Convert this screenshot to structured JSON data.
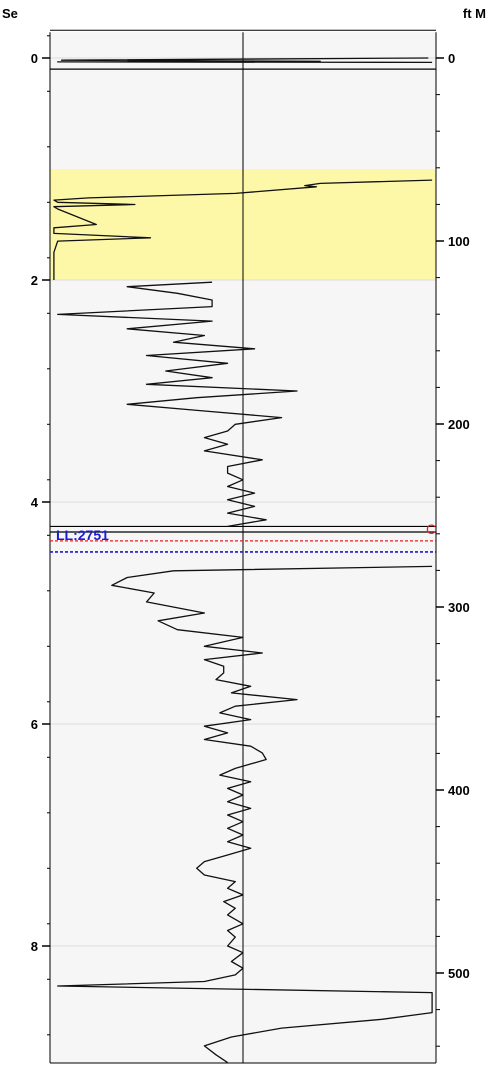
{
  "chart_data": {
    "type": "line",
    "left_axis": {
      "unit": "Se",
      "ticks": [
        0,
        2,
        4,
        6,
        8
      ],
      "tick_labels": [
        "0",
        "2",
        "4",
        "6",
        "8"
      ],
      "range": [
        -0.25,
        9.1
      ]
    },
    "right_axis": {
      "unit": "ft M",
      "ticks": [
        0,
        100,
        200,
        300,
        400,
        500
      ],
      "tick_labels": [
        "0",
        "100",
        "200",
        "300",
        "400",
        "500"
      ],
      "range": [
        -14,
        560
      ]
    },
    "grid": true,
    "highlight_band": {
      "from": 1.0,
      "to": 2.0,
      "color": "#fdf8a8"
    },
    "markers": {
      "ll_label": "LL:2751",
      "ll_color": "#1a1ad8",
      "c_label": "C",
      "c_color": "#e02020"
    },
    "series": [
      {
        "points": [
          [
            0.0,
            0.98
          ],
          [
            0.02,
            0.03
          ],
          [
            0.03,
            0.7
          ],
          [
            0.035,
            0.02
          ],
          [
            0.04,
            0.99
          ]
        ]
      },
      {
        "points": [
          [
            1.1,
            0.99
          ],
          [
            1.13,
            0.7
          ],
          [
            1.15,
            0.66
          ],
          [
            1.16,
            0.69
          ],
          [
            1.22,
            0.48
          ],
          [
            1.26,
            0.1
          ],
          [
            1.28,
            0.01
          ],
          [
            1.3,
            0.02
          ],
          [
            1.32,
            0.22
          ],
          [
            1.34,
            0.01
          ],
          [
            1.36,
            0.02
          ],
          [
            1.5,
            0.12
          ],
          [
            1.53,
            0.01
          ],
          [
            1.58,
            0.01
          ],
          [
            1.62,
            0.26
          ],
          [
            1.65,
            0.02
          ],
          [
            1.75,
            0.01
          ],
          [
            2.0,
            0.01
          ]
        ]
      },
      {
        "points": [
          [
            2.02,
            0.42
          ],
          [
            2.06,
            0.2
          ],
          [
            2.12,
            0.33
          ],
          [
            2.18,
            0.42
          ],
          [
            2.24,
            0.42
          ],
          [
            2.31,
            0.02
          ],
          [
            2.37,
            0.42
          ],
          [
            2.44,
            0.2
          ],
          [
            2.5,
            0.4
          ],
          [
            2.56,
            0.32
          ],
          [
            2.62,
            0.53
          ],
          [
            2.68,
            0.25
          ],
          [
            2.75,
            0.46
          ],
          [
            2.82,
            0.3
          ],
          [
            2.88,
            0.42
          ],
          [
            2.94,
            0.25
          ],
          [
            3.0,
            0.64
          ],
          [
            3.06,
            0.38
          ],
          [
            3.12,
            0.2
          ],
          [
            3.18,
            0.4
          ],
          [
            3.24,
            0.6
          ],
          [
            3.3,
            0.48
          ],
          [
            3.36,
            0.46
          ],
          [
            3.42,
            0.4
          ],
          [
            3.48,
            0.46
          ],
          [
            3.54,
            0.4
          ],
          [
            3.62,
            0.55
          ],
          [
            3.68,
            0.46
          ],
          [
            3.74,
            0.46
          ],
          [
            3.8,
            0.5
          ],
          [
            3.86,
            0.46
          ],
          [
            3.92,
            0.53
          ],
          [
            3.98,
            0.46
          ],
          [
            4.04,
            0.53
          ],
          [
            4.1,
            0.46
          ],
          [
            4.16,
            0.56
          ],
          [
            4.22,
            0.46
          ]
        ]
      },
      {
        "points": [
          [
            4.58,
            0.99
          ],
          [
            4.62,
            0.32
          ],
          [
            4.68,
            0.2
          ],
          [
            4.75,
            0.16
          ],
          [
            4.82,
            0.27
          ],
          [
            4.9,
            0.25
          ],
          [
            5.0,
            0.4
          ],
          [
            5.07,
            0.28
          ],
          [
            5.15,
            0.33
          ],
          [
            5.22,
            0.5
          ],
          [
            5.3,
            0.4
          ],
          [
            5.36,
            0.55
          ],
          [
            5.42,
            0.4
          ],
          [
            5.48,
            0.45
          ],
          [
            5.54,
            0.45
          ],
          [
            5.6,
            0.43
          ],
          [
            5.66,
            0.52
          ],
          [
            5.72,
            0.47
          ],
          [
            5.78,
            0.64
          ],
          [
            5.84,
            0.48
          ],
          [
            5.9,
            0.44
          ],
          [
            5.96,
            0.52
          ],
          [
            6.02,
            0.4
          ],
          [
            6.08,
            0.46
          ],
          [
            6.14,
            0.4
          ],
          [
            6.2,
            0.52
          ],
          [
            6.26,
            0.55
          ],
          [
            6.32,
            0.56
          ],
          [
            6.4,
            0.48
          ],
          [
            6.46,
            0.44
          ],
          [
            6.52,
            0.52
          ],
          [
            6.58,
            0.46
          ],
          [
            6.64,
            0.5
          ],
          [
            6.7,
            0.46
          ],
          [
            6.76,
            0.52
          ],
          [
            6.82,
            0.46
          ],
          [
            6.88,
            0.5
          ],
          [
            6.94,
            0.46
          ],
          [
            7.0,
            0.5
          ],
          [
            7.06,
            0.46
          ],
          [
            7.12,
            0.52
          ],
          [
            7.18,
            0.46
          ],
          [
            7.24,
            0.4
          ],
          [
            7.3,
            0.38
          ],
          [
            7.36,
            0.4
          ],
          [
            7.42,
            0.48
          ],
          [
            7.48,
            0.46
          ],
          [
            7.54,
            0.5
          ],
          [
            7.6,
            0.45
          ],
          [
            7.66,
            0.48
          ],
          [
            7.72,
            0.46
          ],
          [
            7.8,
            0.5
          ],
          [
            7.86,
            0.46
          ],
          [
            7.92,
            0.48
          ],
          [
            8.0,
            0.46
          ],
          [
            8.06,
            0.5
          ],
          [
            8.14,
            0.47
          ],
          [
            8.2,
            0.5
          ],
          [
            8.26,
            0.48
          ],
          [
            8.32,
            0.4
          ],
          [
            8.36,
            0.02
          ],
          [
            8.42,
            0.99
          ],
          [
            8.6,
            0.99
          ],
          [
            8.66,
            0.86
          ],
          [
            8.74,
            0.6
          ],
          [
            8.82,
            0.47
          ],
          [
            8.9,
            0.4
          ],
          [
            8.98,
            0.43
          ],
          [
            9.05,
            0.46
          ]
        ]
      }
    ]
  }
}
